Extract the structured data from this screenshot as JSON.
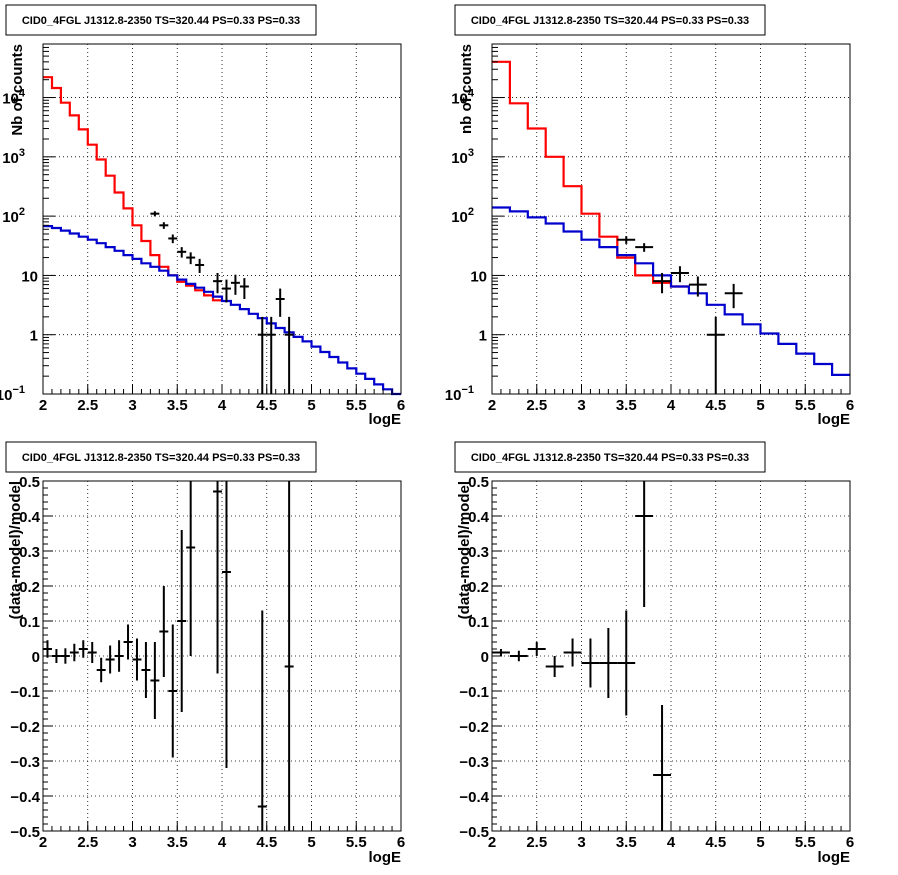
{
  "colors": {
    "data": "#000000",
    "total_model": "#ff0000",
    "background_model": "#0000cc",
    "grid": "#000000"
  },
  "panel_title": "CID0_4FGL J1312.8-2350 TS=320.44 PS=0.33 PS=0.33",
  "chart_data": [
    {
      "type": "line",
      "title": "CID0_4FGL J1312.8-2350 TS=320.44 PS=0.33 PS=0.33",
      "xlabel": "logE",
      "ylabel": "Nb of counts",
      "xlim": [
        2,
        6
      ],
      "ylim": [
        0.1,
        80000
      ],
      "yscale": "log",
      "grid": true,
      "xticks": [
        "2",
        "2.5",
        "3",
        "3.5",
        "4",
        "4.5",
        "5",
        "5.5",
        "6"
      ],
      "yticks": [
        {
          "value": 0.1,
          "base": "10",
          "exp": "−1"
        },
        {
          "value": 1,
          "base": "1",
          "exp": ""
        },
        {
          "value": 10,
          "base": "10",
          "exp": ""
        },
        {
          "value": 100,
          "base": "10",
          "exp": "2"
        },
        {
          "value": 1000,
          "base": "10",
          "exp": "3"
        },
        {
          "value": 10000,
          "base": "10",
          "exp": "4"
        }
      ],
      "bin_edges": [
        2.0,
        2.1,
        2.2,
        2.3,
        2.4,
        2.5,
        2.6,
        2.7,
        2.8,
        2.9,
        3.0,
        3.1,
        3.2,
        3.3,
        3.4,
        3.5,
        3.6,
        3.7,
        3.8,
        3.9,
        4.0,
        4.1,
        4.2,
        4.3,
        4.4,
        4.5,
        4.6,
        4.7,
        4.8,
        4.9,
        5.0,
        5.1,
        5.2,
        5.3,
        5.4,
        5.5,
        5.6,
        5.7,
        5.8,
        5.9,
        6.0
      ],
      "series": [
        {
          "role": "total_model",
          "values": [
            22000,
            14500,
            8200,
            5000,
            2900,
            1600,
            900,
            480,
            250,
            135,
            70,
            38,
            22,
            14,
            10,
            7.8,
            6.7,
            5.6,
            4.6,
            3.8,
            3.0,
            2.5,
            2.0,
            1.65,
            1.35,
            1.1,
            0.9,
            0.74,
            0.6,
            0.5,
            0.42,
            0.34,
            0.28,
            0.23,
            0.19,
            0.155,
            0.13,
            0.11,
            0.095,
            0.085
          ],
          "stop_bin": 20
        },
        {
          "role": "background_model",
          "values": [
            68,
            63,
            57,
            51,
            45,
            40,
            35,
            30,
            26,
            22,
            19,
            16,
            14,
            12,
            10,
            8.5,
            7.2,
            6.2,
            5.3,
            4.4,
            3.7,
            3.2,
            2.7,
            2.25,
            1.9,
            1.55,
            1.3,
            1.1,
            0.92,
            0.77,
            0.63,
            0.51,
            0.42,
            0.34,
            0.27,
            0.22,
            0.18,
            0.145,
            0.12,
            0.1
          ]
        }
      ],
      "points": [
        {
          "x": 3.25,
          "y": 110,
          "yerr": 11
        },
        {
          "x": 3.35,
          "y": 70,
          "yerr": 9
        },
        {
          "x": 3.45,
          "y": 42,
          "yerr": 7
        },
        {
          "x": 3.55,
          "y": 25,
          "yerr": 5
        },
        {
          "x": 3.65,
          "y": 20,
          "yerr": 4.5
        },
        {
          "x": 3.75,
          "y": 15,
          "yerr": 4
        },
        {
          "x": 3.95,
          "y": 8,
          "yerr": 3
        },
        {
          "x": 4.05,
          "y": 6,
          "yerr": 2.5
        },
        {
          "x": 4.15,
          "y": 7.5,
          "yerr": 2.8
        },
        {
          "x": 4.25,
          "y": 6.5,
          "yerr": 2.5
        },
        {
          "x": 4.45,
          "y": 1,
          "yerr": 1
        },
        {
          "x": 4.55,
          "y": 1,
          "yerr": 1
        },
        {
          "x": 4.65,
          "y": 4,
          "yerr": 2
        },
        {
          "x": 4.75,
          "y": 1,
          "yerr": 1
        }
      ]
    },
    {
      "type": "line",
      "title": "CID0_4FGL J1312.8-2350 TS=320.44 PS=0.33 PS=0.33",
      "xlabel": "logE",
      "ylabel": "nb of counts",
      "xlim": [
        2,
        6
      ],
      "ylim": [
        0.1,
        80000
      ],
      "yscale": "log",
      "grid": true,
      "xticks": [
        "2",
        "2.5",
        "3",
        "3.5",
        "4",
        "4.5",
        "5",
        "5.5",
        "6"
      ],
      "yticks": [
        {
          "value": 0.1,
          "base": "10",
          "exp": "−1"
        },
        {
          "value": 1,
          "base": "1",
          "exp": ""
        },
        {
          "value": 10,
          "base": "10",
          "exp": ""
        },
        {
          "value": 100,
          "base": "10",
          "exp": "2"
        },
        {
          "value": 1000,
          "base": "10",
          "exp": "3"
        },
        {
          "value": 10000,
          "base": "10",
          "exp": "4"
        }
      ],
      "bin_edges": [
        2.0,
        2.2,
        2.4,
        2.6,
        2.8,
        3.0,
        3.2,
        3.4,
        3.6,
        3.8,
        4.0,
        4.2,
        4.4,
        4.6,
        4.8,
        5.0,
        5.2,
        5.4,
        5.6,
        5.8,
        6.0
      ],
      "series": [
        {
          "role": "total_model",
          "values": [
            40000,
            8000,
            3000,
            1000,
            320,
            110,
            45,
            20,
            10,
            7.5,
            6.5
          ],
          "stop_bin": 11
        },
        {
          "role": "background_model",
          "values": [
            140,
            120,
            95,
            75,
            55,
            40,
            30,
            22,
            16,
            10,
            6.5,
            5,
            3.2,
            2.2,
            1.5,
            1.05,
            0.7,
            0.48,
            0.32,
            0.21
          ]
        }
      ],
      "points": [
        {
          "x": 3.5,
          "y": 40,
          "yerr": 6,
          "xerr": 0.1
        },
        {
          "x": 3.7,
          "y": 30,
          "yerr": 5,
          "xerr": 0.1
        },
        {
          "x": 3.9,
          "y": 8,
          "yerr": 3,
          "xerr": 0.1
        },
        {
          "x": 4.1,
          "y": 11,
          "yerr": 3.3,
          "xerr": 0.1
        },
        {
          "x": 4.3,
          "y": 7,
          "yerr": 2.6,
          "xerr": 0.1
        },
        {
          "x": 4.5,
          "y": 1,
          "yerr": 1,
          "xerr": 0.1
        },
        {
          "x": 4.7,
          "y": 5,
          "yerr": 2.2,
          "xerr": 0.1
        }
      ]
    },
    {
      "type": "scatter",
      "title": "CID0_4FGL J1312.8-2350 TS=320.44 PS=0.33 PS=0.33",
      "xlabel": "logE",
      "ylabel": "(data-model)/model",
      "xlim": [
        2,
        6
      ],
      "ylim": [
        -0.5,
        0.5
      ],
      "grid": true,
      "xticks": [
        "2",
        "2.5",
        "3",
        "3.5",
        "4",
        "4.5",
        "5",
        "5.5",
        "6"
      ],
      "yticks": [
        "−0.5",
        "−0.4",
        "−0.3",
        "−0.2",
        "−0.1",
        "0",
        "0.1",
        "0.2",
        "0.3",
        "0.4",
        "0.5"
      ],
      "points": [
        {
          "x": 2.05,
          "y": 0.02,
          "yerr": 0.025
        },
        {
          "x": 2.15,
          "y": 0.0,
          "yerr": 0.02
        },
        {
          "x": 2.25,
          "y": 0.0,
          "yerr": 0.022
        },
        {
          "x": 2.35,
          "y": 0.01,
          "yerr": 0.025
        },
        {
          "x": 2.45,
          "y": 0.02,
          "yerr": 0.025
        },
        {
          "x": 2.55,
          "y": 0.01,
          "yerr": 0.03
        },
        {
          "x": 2.65,
          "y": -0.04,
          "yerr": 0.035
        },
        {
          "x": 2.75,
          "y": -0.01,
          "yerr": 0.04
        },
        {
          "x": 2.85,
          "y": 0.0,
          "yerr": 0.045
        },
        {
          "x": 2.95,
          "y": 0.04,
          "yerr": 0.05
        },
        {
          "x": 3.05,
          "y": -0.01,
          "yerr": 0.06
        },
        {
          "x": 3.15,
          "y": -0.04,
          "yerr": 0.08
        },
        {
          "x": 3.25,
          "y": -0.07,
          "yerr": 0.11
        },
        {
          "x": 3.35,
          "y": 0.07,
          "yerr": 0.13
        },
        {
          "x": 3.45,
          "y": -0.1,
          "yerr": 0.19
        },
        {
          "x": 3.55,
          "y": 0.1,
          "yerr": 0.26
        },
        {
          "x": 3.65,
          "y": 0.31,
          "yerr": 0.31
        },
        {
          "x": 3.95,
          "y": 0.47,
          "yerr": 0.52
        },
        {
          "x": 4.05,
          "y": 0.24,
          "yerr": 0.56
        },
        {
          "x": 4.45,
          "y": -0.43,
          "yerr": 0.56
        },
        {
          "x": 4.75,
          "y": -0.03,
          "yerr": 0.6
        }
      ]
    },
    {
      "type": "scatter",
      "title": "CID0_4FGL J1312.8-2350 TS=320.44 PS=0.33 PS=0.33",
      "xlabel": "logE",
      "ylabel": "(data-model)/model",
      "xlim": [
        2,
        6
      ],
      "ylim": [
        -0.5,
        0.5
      ],
      "grid": true,
      "xticks": [
        "2",
        "2.5",
        "3",
        "3.5",
        "4",
        "4.5",
        "5",
        "5.5",
        "6"
      ],
      "yticks": [
        "−0.5",
        "−0.4",
        "−0.3",
        "−0.2",
        "−0.1",
        "0",
        "0.1",
        "0.2",
        "0.3",
        "0.4",
        "0.5"
      ],
      "points": [
        {
          "x": 2.1,
          "y": 0.01,
          "yerr": 0.01,
          "xerr": 0.1
        },
        {
          "x": 2.3,
          "y": 0.0,
          "yerr": 0.015,
          "xerr": 0.1
        },
        {
          "x": 2.5,
          "y": 0.02,
          "yerr": 0.02,
          "xerr": 0.1
        },
        {
          "x": 2.7,
          "y": -0.03,
          "yerr": 0.03,
          "xerr": 0.1
        },
        {
          "x": 2.9,
          "y": 0.01,
          "yerr": 0.04,
          "xerr": 0.1
        },
        {
          "x": 3.1,
          "y": -0.02,
          "yerr": 0.07,
          "xerr": 0.1
        },
        {
          "x": 3.3,
          "y": -0.02,
          "yerr": 0.1,
          "xerr": 0.1
        },
        {
          "x": 3.5,
          "y": -0.02,
          "yerr": 0.15,
          "xerr": 0.1
        },
        {
          "x": 3.7,
          "y": 0.4,
          "yerr": 0.26,
          "xerr": 0.1
        },
        {
          "x": 3.9,
          "y": -0.34,
          "yerr": 0.2,
          "xerr": 0.1
        }
      ]
    }
  ]
}
